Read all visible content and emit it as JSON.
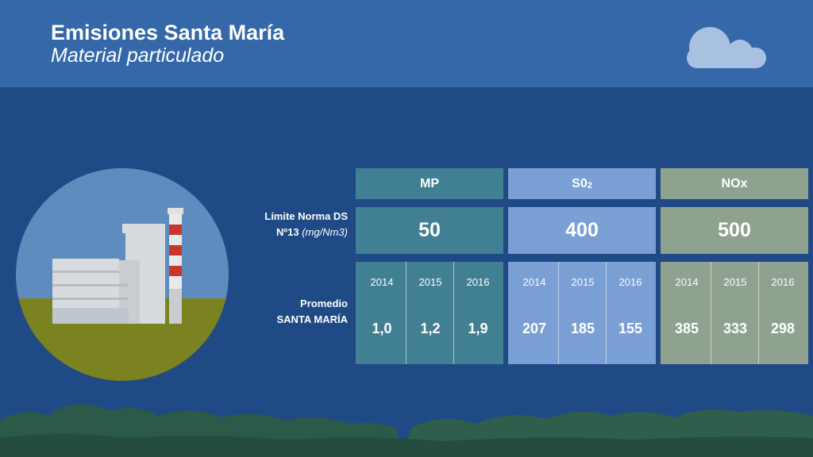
{
  "header": {
    "title": "Emisiones Santa María",
    "subtitle": "Material particulado"
  },
  "labels": {
    "limit_line1": "Límite Norma DS",
    "limit_line2_bold": "Nº13",
    "limit_line2_italic": "(mg/Nm3)",
    "avg_line1": "Promedio",
    "avg_line2": "SANTA MARÍA"
  },
  "pollutants": [
    {
      "name": "MP",
      "limit": "50",
      "years": [
        "2014",
        "2015",
        "2016"
      ],
      "values": [
        "1,0",
        "1,2",
        "1,9"
      ],
      "color": "#417f92"
    },
    {
      "name_base": "S0",
      "name_sub": "2",
      "limit": "400",
      "years": [
        "2014",
        "2015",
        "2016"
      ],
      "values": [
        "207",
        "185",
        "155"
      ],
      "color": "#7a9fd4"
    },
    {
      "name": "NOx",
      "limit": "500",
      "years": [
        "2014",
        "2015",
        "2016"
      ],
      "values": [
        "385",
        "333",
        "298"
      ],
      "color": "#8fa28f"
    }
  ],
  "colors": {
    "background": "#1f4a85",
    "header": "#3468a8"
  },
  "icons": [
    "cloud-icon",
    "factory-illustration",
    "mountains-silhouette"
  ]
}
